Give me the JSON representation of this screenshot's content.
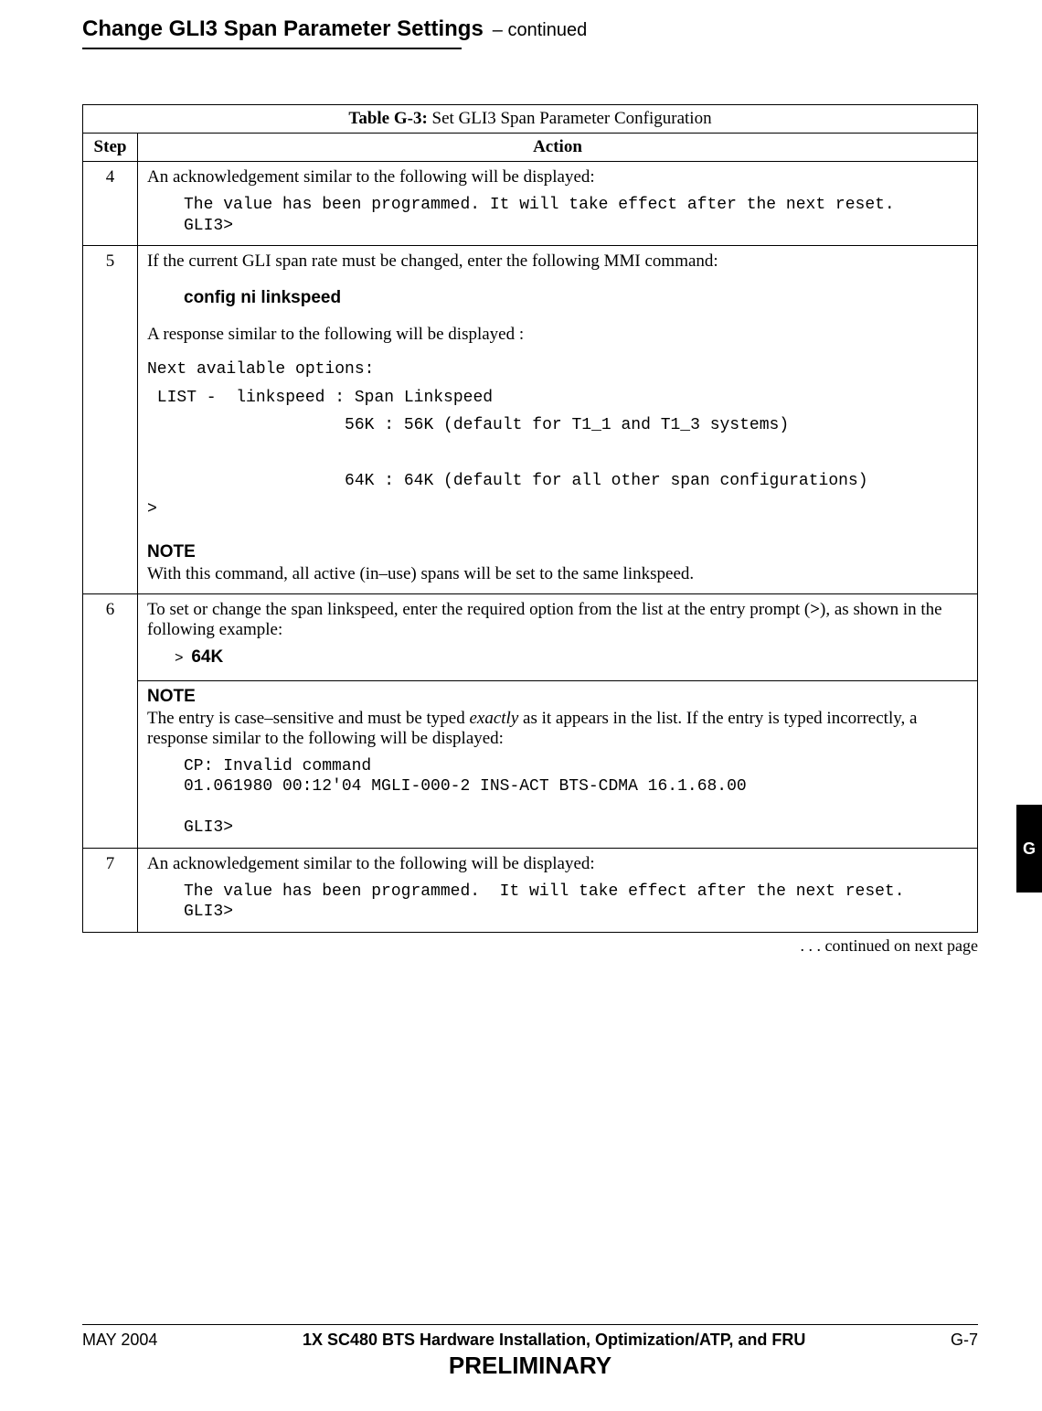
{
  "header": {
    "title": "Change GLI3 Span Parameter Settings",
    "suffix": " – continued"
  },
  "table": {
    "title_label": "Table G-3:",
    "title_text": " Set GLI3 Span Parameter Configuration",
    "col_step": "Step",
    "col_action": "Action"
  },
  "row4": {
    "step": "4",
    "text": "An acknowledgement similar to the following will be displayed:",
    "mono": "The value has been programmed. It will take effect after the next reset.\nGLI3>"
  },
  "row5": {
    "step": "5",
    "intro": "If the current GLI span rate must be changed, enter the following MMI command:",
    "cmd": "config  ni  linkspeed",
    "resp_intro": "A response similar to the following will be displayed :",
    "mono": "Next available options:\n LIST -  linkspeed : Span Linkspeed\n                    56K : 56K (default for T1_1 and T1_3 systems)\n\n                    64K : 64K (default for all other span configurations)\n>",
    "note_hdr": "NOTE",
    "note_body": "With this command, all active (in–use) spans will be set to the same linkspeed."
  },
  "row6": {
    "step": "6",
    "intro_a": "To set or change the span linkspeed, enter the required option from the list at the entry prompt (",
    "intro_b": ">",
    "intro_c": "), as shown in the following example:",
    "prompt": ">",
    "value": "64K",
    "note_hdr": "NOTE",
    "note_a": "The entry is case–sensitive and must be typed ",
    "note_italic": "exactly",
    "note_b": " as it appears in the list. If the entry is typed incorrectly, a response similar to the following will be displayed:",
    "mono": "CP: Invalid command\n01.061980 00:12'04 MGLI-000-2 INS-ACT BTS-CDMA 16.1.68.00\n\nGLI3>"
  },
  "row7": {
    "step": "7",
    "text": "An acknowledgement similar to the following will be displayed:",
    "mono": "The value has been programmed.  It will take effect after the next reset.\nGLI3>"
  },
  "continued": ". . . continued on next page",
  "side_tab": "G",
  "footer": {
    "date": "MAY 2004",
    "title": "1X SC480 BTS Hardware Installation, Optimization/ATP, and FRU",
    "page": "G-7",
    "prelim": "PRELIMINARY"
  }
}
